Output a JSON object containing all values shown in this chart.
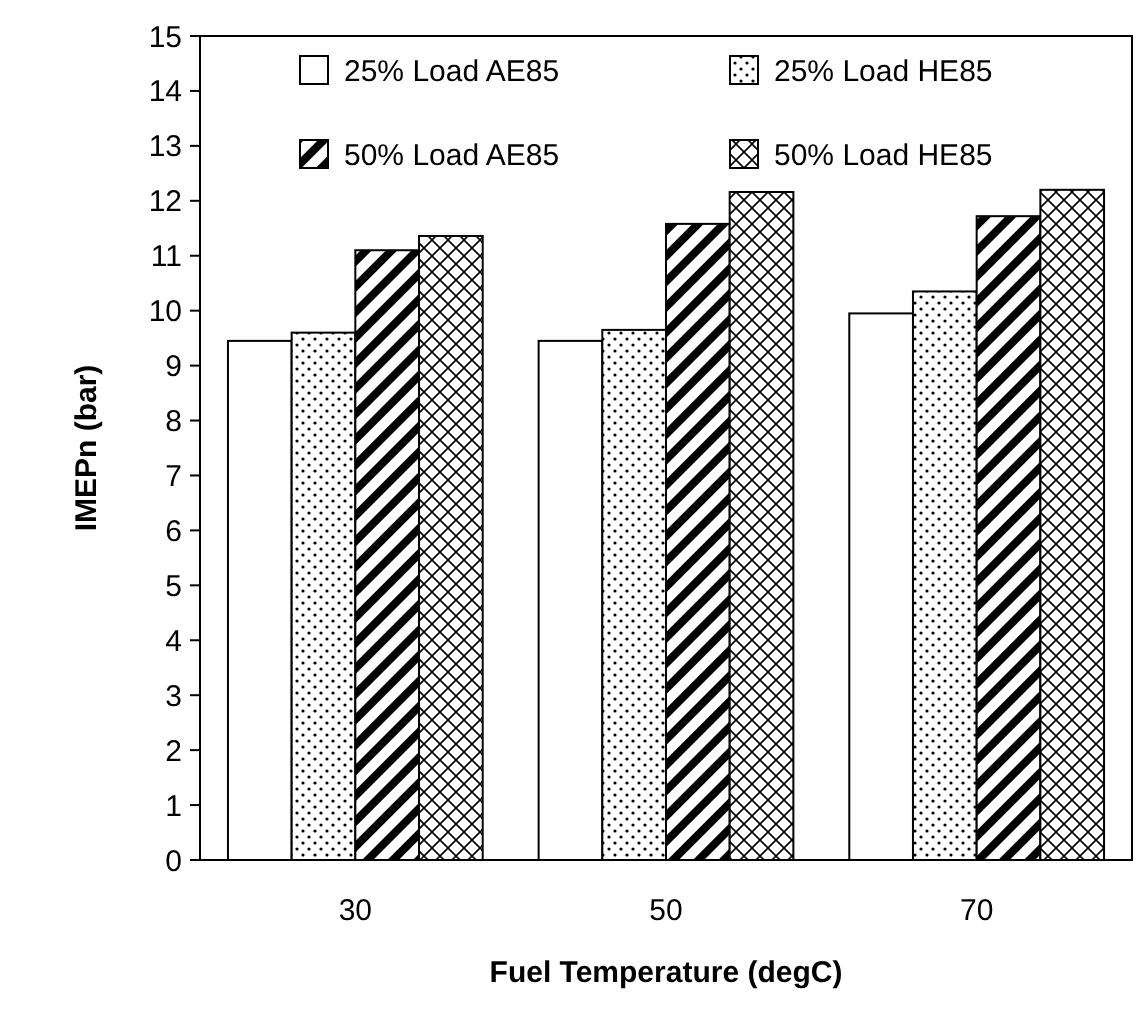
{
  "chart_data": {
    "type": "bar",
    "xlabel": "Fuel Temperature (degC)",
    "ylabel": "IMEPn (bar)",
    "categories": [
      "30",
      "50",
      "70"
    ],
    "series": [
      {
        "name": "25% Load AE85",
        "color": "#000000",
        "values": [
          9.45,
          9.45,
          9.95
        ]
      },
      {
        "name": "25% Load HE85",
        "color": "#000000",
        "values": [
          9.6,
          9.65,
          10.35
        ]
      },
      {
        "name": "50% Load AE85",
        "color": "#000000",
        "values": [
          11.1,
          11.58,
          11.72
        ]
      },
      {
        "name": "50% Load HE85",
        "color": "#000000",
        "values": [
          11.36,
          12.16,
          12.2
        ]
      }
    ],
    "ylim": [
      0,
      15
    ],
    "yticks": [
      0,
      1,
      2,
      3,
      4,
      5,
      6,
      7,
      8,
      9,
      10,
      11,
      12,
      13,
      14,
      15
    ],
    "grid": false,
    "legend": "top"
  }
}
